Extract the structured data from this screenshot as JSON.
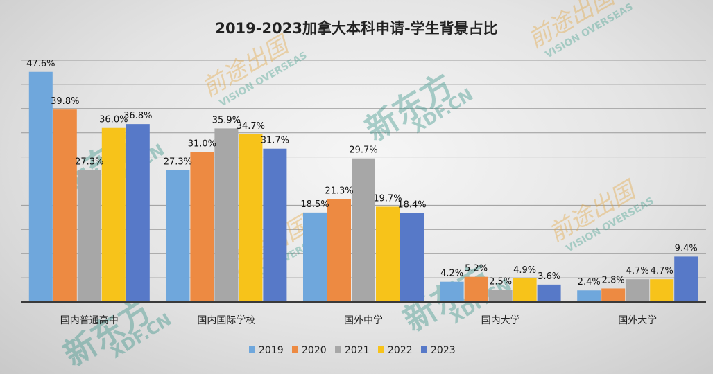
{
  "chart_data": {
    "type": "bar",
    "title": "2019-2023加拿大本科申请-学生背景占比",
    "categories": [
      "国内普通高中",
      "国内国际学校",
      "国外中学",
      "国内大学",
      "国外大学"
    ],
    "series": [
      {
        "name": "2019",
        "color": "#6fa7dc",
        "values": [
          47.6,
          27.3,
          18.5,
          4.2,
          2.4
        ],
        "labels": [
          "47.6%",
          "27.3%",
          "18.5%",
          "4.2%",
          "2.4%"
        ]
      },
      {
        "name": "2020",
        "color": "#ed8a42",
        "values": [
          39.8,
          31.0,
          21.3,
          5.2,
          2.8
        ],
        "labels": [
          "39.8%",
          "31.0%",
          "21.3%",
          "5.2%",
          "2.8%"
        ]
      },
      {
        "name": "2021",
        "color": "#a7a7a7",
        "values": [
          27.3,
          35.9,
          29.7,
          2.5,
          4.7
        ],
        "labels": [
          "27.3%",
          "35.9%",
          "29.7%",
          "2.5%",
          "4.7%"
        ]
      },
      {
        "name": "2022",
        "color": "#f7c31a",
        "values": [
          36.0,
          34.7,
          19.7,
          4.9,
          4.7
        ],
        "labels": [
          "36.0%",
          "34.7%",
          "19.7%",
          "4.9%",
          "4.7%"
        ]
      },
      {
        "name": "2023",
        "color": "#5779c8",
        "values": [
          36.8,
          31.7,
          18.4,
          3.6,
          9.4
        ],
        "labels": [
          "36.8%",
          "31.7%",
          "18.4%",
          "3.6%",
          "9.4%"
        ]
      }
    ],
    "ylim": [
      0,
      50
    ],
    "grid": true,
    "legend": "bottom"
  },
  "watermarks": {
    "brand": "新东方",
    "domain": "XDF.CN",
    "partner": "前途出国",
    "partner_en": "VISION OVERSEAS"
  }
}
